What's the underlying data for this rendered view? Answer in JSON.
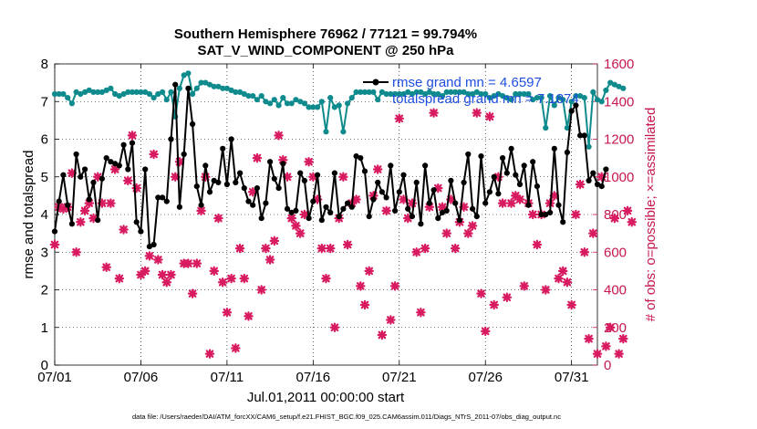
{
  "chart_data": {
    "type": "line",
    "title": "Southern Hemisphere 76962 / 77121 = 99.794%",
    "subtitle": "SAT_V_WIND_COMPONENT @ 250 hPa",
    "xlabel": "Jul.01,2011 00:00:00 start",
    "ylabel": "rmse and totalspread",
    "ylabel_right": "# of obs: o=possible; ×=assimilated",
    "footer": "data file: /Users/raeder/DAI/ATM_forcXX/CAM6_setup/f.e21.FHIST_BGC.f09_025.CAM6assim.011/Diags_NTrS_2011-07/obs_diag_output.nc",
    "xlim": [
      0,
      31.5
    ],
    "ylim": [
      0,
      8
    ],
    "ylim_right": [
      0,
      1600
    ],
    "xtick_positions": [
      0,
      5,
      10,
      15,
      20,
      25,
      30
    ],
    "xtick_labels": [
      "07/01",
      "07/06",
      "07/11",
      "07/16",
      "07/21",
      "07/26",
      "07/31"
    ],
    "yticks": [
      0,
      1,
      2,
      3,
      4,
      5,
      6,
      7,
      8
    ],
    "yticks_right": [
      0,
      200,
      400,
      600,
      800,
      1000,
      1200,
      1400,
      1600
    ],
    "legend_position": "top-right",
    "colors": {
      "rmse": "#000000",
      "totalspread": "#0f8b8d",
      "counts": "#d81b60",
      "right_axis": "#c8174d",
      "legend_text": "#1f4fe0"
    },
    "series": [
      {
        "name": "rmse grand mn = 4.6597",
        "axis": "left",
        "values": [
          3.55,
          4.35,
          5.05,
          4.25,
          3.75,
          5.6,
          5.0,
          5.2,
          4.4,
          4.85,
          3.85,
          4.95,
          5.5,
          5.4,
          5.35,
          5.3,
          5.85,
          5.2,
          5.9,
          3.8,
          3.55,
          5.2,
          3.15,
          3.2,
          4.45,
          4.45,
          4.35,
          6.0,
          7.45,
          4.2,
          5.6,
          7.35,
          6.4,
          4.75,
          4.25,
          5.3,
          4.6,
          4.9,
          4.85,
          5.75,
          4.8,
          6.0,
          4.85,
          5.1,
          4.7,
          4.35,
          4.25,
          4.7,
          3.9,
          4.3,
          5.4,
          4.95,
          4.7,
          5.35,
          4.15,
          4.05,
          4.1,
          5.1,
          4.9,
          3.9,
          4.35,
          5.05,
          3.85,
          4.2,
          4.05,
          5.1,
          3.95,
          4.15,
          4.3,
          4.2,
          5.55,
          5.5,
          5.15,
          3.95,
          4.4,
          4.85,
          4.6,
          4.45,
          5.3,
          4.1,
          4.6,
          5.05,
          4.15,
          3.95,
          4.85,
          3.75,
          5.3,
          4.3,
          4.65,
          3.9,
          4.05,
          4.1,
          4.9,
          4.3,
          3.85,
          4.85,
          5.6,
          4.15,
          3.95,
          5.55,
          4.3,
          4.6,
          5.0,
          4.55,
          5.5,
          5.1,
          5.75,
          5.05,
          4.8,
          5.3,
          4.25,
          5.4,
          4.75,
          4.0,
          4.0,
          4.05,
          5.75,
          4.25,
          3.8,
          5.65,
          6.75,
          6.9,
          6.1,
          6.1,
          4.9,
          5.1,
          4.8,
          4.75,
          5.2
        ],
        "x_start": 0.0,
        "x_step": 0.25
      },
      {
        "name": "totalspread grand mn = 7.1874",
        "axis": "left",
        "values": [
          7.2,
          7.2,
          7.2,
          7.1,
          6.95,
          7.25,
          7.2,
          7.25,
          7.3,
          7.25,
          7.25,
          7.25,
          7.3,
          7.35,
          7.2,
          7.15,
          7.2,
          7.25,
          7.25,
          7.25,
          7.25,
          7.25,
          7.2,
          7.1,
          7.2,
          7.25,
          7.05,
          7.25,
          6.6,
          7.35,
          7.7,
          7.75,
          7.2,
          7.35,
          7.5,
          7.5,
          7.45,
          7.4,
          7.4,
          7.35,
          7.35,
          7.3,
          7.25,
          7.25,
          7.2,
          7.15,
          7.15,
          7.05,
          7.15,
          7.0,
          6.95,
          7.05,
          6.9,
          7.1,
          6.95,
          6.95,
          7.05,
          7.0,
          6.95,
          6.85,
          6.85,
          6.85,
          7.0,
          6.2,
          7.1,
          6.85,
          6.9,
          6.2,
          6.95,
          7.1,
          7.25,
          7.25,
          7.25,
          7.25,
          7.25,
          7.05,
          7.25,
          7.2,
          7.2,
          7.2,
          7.2,
          7.2,
          7.25,
          7.2,
          7.25,
          7.25,
          7.2,
          7.25,
          7.2,
          7.2,
          7.15,
          7.25,
          7.25,
          7.25,
          7.25,
          7.25,
          7.2,
          7.2,
          7.25,
          7.2,
          7.2,
          7.1,
          7.15,
          7.2,
          7.15,
          7.1,
          7.05,
          7.2,
          7.2,
          7.2,
          7.2,
          7.05,
          7.1,
          7.1,
          6.3,
          7.15,
          6.9,
          7.1,
          7.05,
          6.3,
          7.0,
          7.15,
          7.15,
          7.1,
          5.8,
          7.25,
          7.05,
          7.0,
          7.3,
          7.5,
          7.45,
          7.4,
          7.35
        ],
        "x_start": 0.0,
        "x_step": 0.25
      },
      {
        "name": "# of obs assimilated",
        "axis": "right",
        "values": [
          640,
          840,
          830,
          840,
          1020,
          600,
          760,
          820,
          860,
          780,
          1000,
          860,
          520,
          860,
          1040,
          460,
          720,
          980,
          1220,
          940,
          480,
          500,
          580,
          1120,
          560,
          480,
          440,
          480,
          1000,
          1080,
          540,
          540,
          380,
          540,
          820,
          1000,
          60,
          500,
          780,
          440,
          280,
          460,
          90,
          620,
          460,
          260,
          920,
          1100,
          400,
          620,
          560,
          660,
          1220,
          1090,
          1000,
          780,
          740,
          700,
          800,
          1080,
          1000,
          880,
          620,
          460,
          620,
          200,
          780,
          1000,
          640,
          860,
          880,
          420,
          320,
          500,
          900,
          1040,
          160,
          820,
          240,
          420,
          1310,
          880,
          780,
          860,
          600,
          280,
          620,
          840,
          1340,
          940,
          840,
          700,
          880,
          620,
          760,
          840,
          700,
          740,
          1340,
          380,
          180,
          1320,
          320,
          1000,
          860,
          360,
          860,
          900,
          880,
          420,
          860,
          800,
          640,
          800,
          400,
          860,
          900,
          460,
          500,
          440,
          320,
          800,
          960,
          600,
          140,
          700,
          60,
          1000,
          100,
          200,
          780,
          60,
          140,
          820,
          760
        ],
        "x_start": 0.0,
        "x_step": 0.25
      }
    ]
  }
}
